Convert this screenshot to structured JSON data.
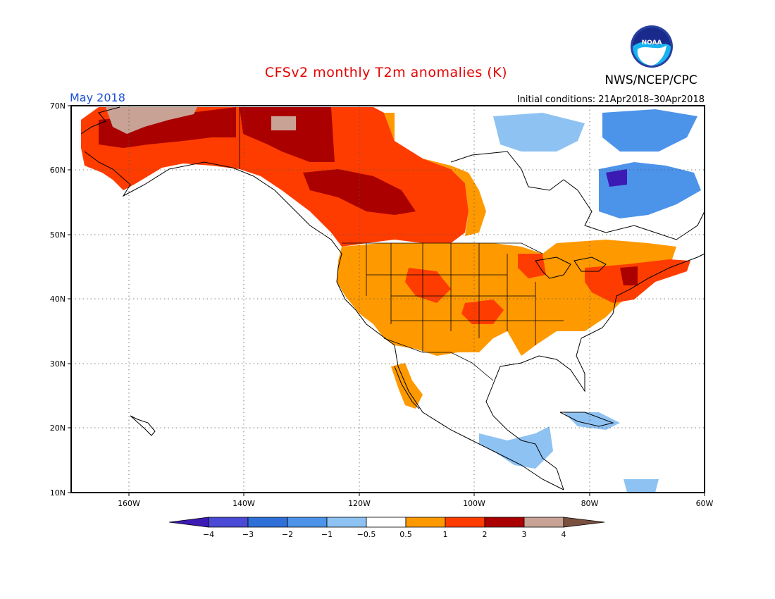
{
  "header": {
    "title": "CFSv2 monthly T2m anomalies (K)",
    "month": "May 2018",
    "initial_conditions": "Initial conditions: 21Apr2018–30Apr2018",
    "organization": "NWS/NCEP/CPC",
    "logo_text": "NOAA"
  },
  "axes": {
    "lat_labels": [
      "70N",
      "60N",
      "50N",
      "40N",
      "30N",
      "20N",
      "10N"
    ],
    "lon_labels": [
      "160W",
      "140W",
      "120W",
      "100W",
      "80W",
      "60W"
    ]
  },
  "colorbar": {
    "labels": [
      "−4",
      "−3",
      "−2",
      "−1",
      "−0.5",
      "0.5",
      "1",
      "2",
      "3",
      "4"
    ],
    "colors": [
      "#3c1ab4",
      "#4a4ad6",
      "#2f70d8",
      "#4c93ea",
      "#8ec2f2",
      "#ffffff",
      "#ff9900",
      "#ff3c00",
      "#aa0000",
      "#c9a296",
      "#7a5040"
    ]
  },
  "map": {
    "projection": "equirectangular",
    "lon_range": [
      -170,
      -60
    ],
    "lat_range": [
      10,
      70
    ]
  }
}
